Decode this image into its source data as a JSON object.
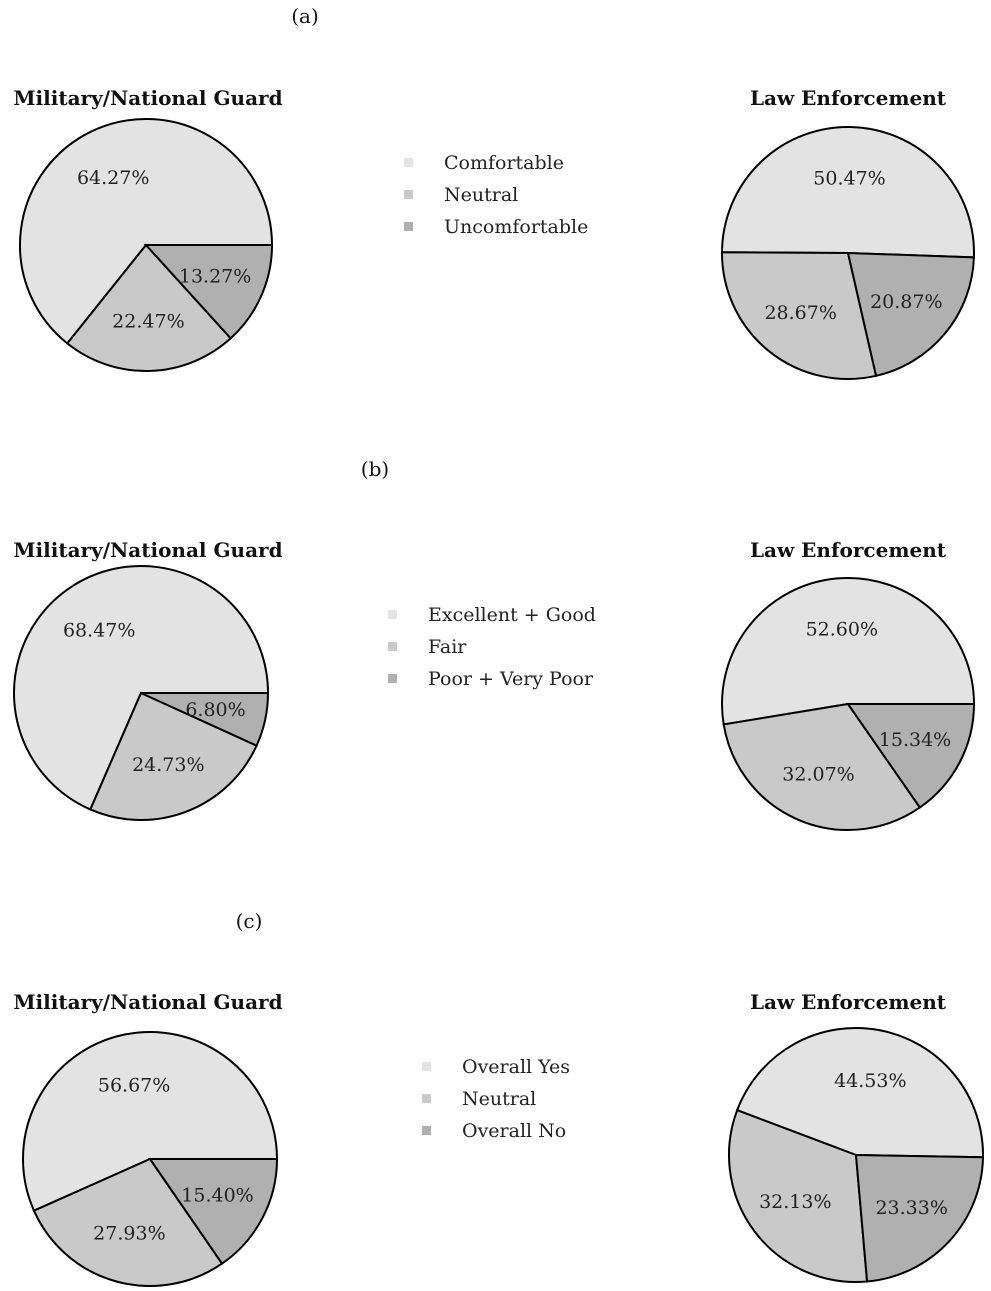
{
  "colors": {
    "slice": [
      "#e3e3e3",
      "#c9c9c9",
      "#b0b0b0"
    ],
    "edge": "#000000"
  },
  "chart_data": [
    {
      "panel": "(a)",
      "legend": [
        "Comfortable",
        "Neutral",
        "Uncomfortable"
      ],
      "charts": [
        {
          "type": "pie",
          "title": "Military/National Guard",
          "labels": [
            "64.27%",
            "22.47%",
            "13.27%"
          ],
          "values": [
            64.27,
            22.47,
            13.27
          ]
        },
        {
          "type": "pie",
          "title": "Law Enforcement",
          "labels": [
            "50.47%",
            "28.67%",
            "20.87%"
          ],
          "values": [
            50.47,
            28.67,
            20.87
          ]
        }
      ]
    },
    {
      "panel": "(b)",
      "legend": [
        "Excellent + Good",
        "Fair",
        "Poor + Very Poor"
      ],
      "charts": [
        {
          "type": "pie",
          "title": "Military/National Guard",
          "labels": [
            "68.47%",
            "24.73%",
            "6.80%"
          ],
          "values": [
            68.47,
            24.73,
            6.8
          ]
        },
        {
          "type": "pie",
          "title": "Law Enforcement",
          "labels": [
            "52.60%",
            "32.07%",
            "15.34%"
          ],
          "values": [
            52.6,
            32.07,
            15.34
          ]
        }
      ]
    },
    {
      "panel": "(c)",
      "legend": [
        "Overall Yes",
        "Neutral",
        "Overall No"
      ],
      "charts": [
        {
          "type": "pie",
          "title": "Military/National Guard",
          "labels": [
            "56.67%",
            "27.93%",
            "15.40%"
          ],
          "values": [
            56.67,
            27.93,
            15.4
          ]
        },
        {
          "type": "pie",
          "title": "Law Enforcement",
          "labels": [
            "44.53%",
            "32.13%",
            "23.33%"
          ],
          "values": [
            44.53,
            32.13,
            23.33
          ]
        }
      ]
    }
  ]
}
